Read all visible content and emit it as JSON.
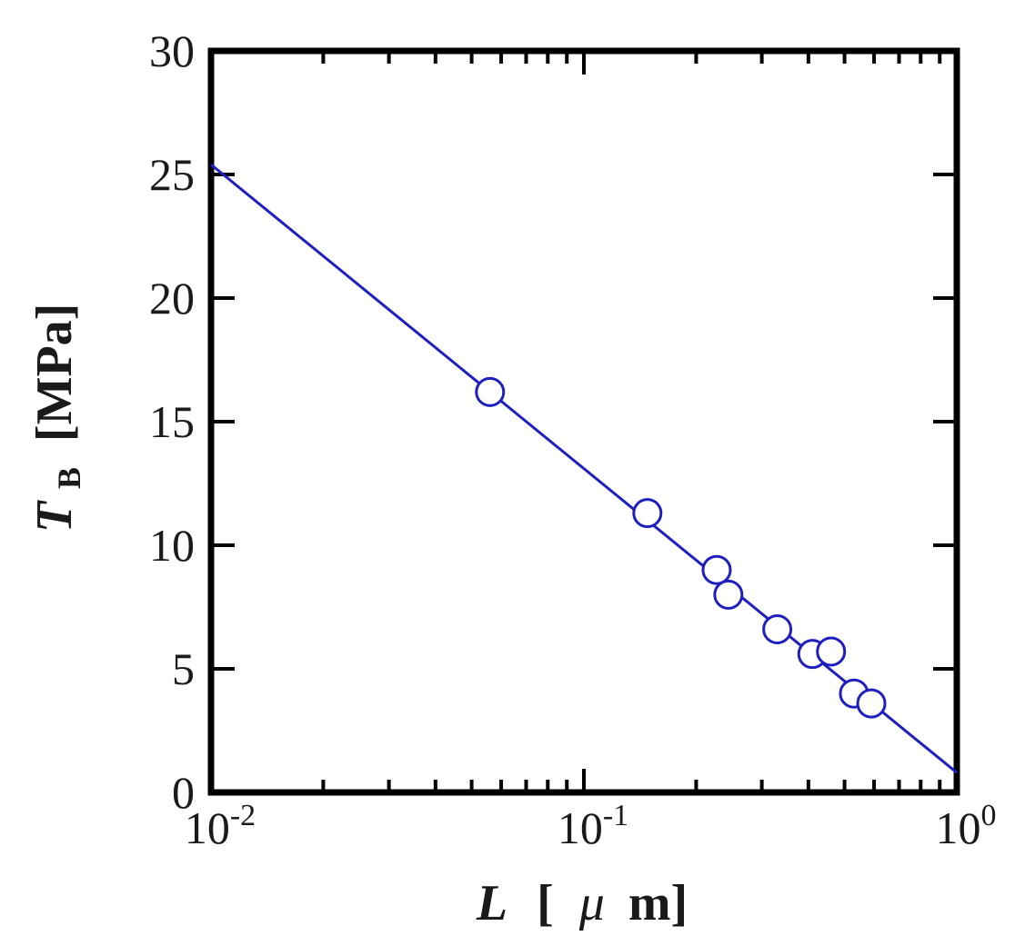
{
  "chart_data": {
    "type": "scatter",
    "x_scale": "log",
    "y_scale": "linear",
    "xlim": [
      0.01,
      1
    ],
    "ylim": [
      0,
      30
    ],
    "x_ticks": [
      {
        "value": 0.01,
        "base": "10",
        "exp": "-2"
      },
      {
        "value": 0.1,
        "base": "10",
        "exp": "-1"
      },
      {
        "value": 1,
        "base": "10",
        "exp": "0"
      }
    ],
    "y_ticks": [
      {
        "value": 0,
        "label": "0"
      },
      {
        "value": 5,
        "label": "5"
      },
      {
        "value": 10,
        "label": "10"
      },
      {
        "value": 15,
        "label": "15"
      },
      {
        "value": 20,
        "label": "20"
      },
      {
        "value": 25,
        "label": "25"
      },
      {
        "value": 30,
        "label": "30"
      }
    ],
    "xlabel": {
      "var": "L",
      "unit_open": "[",
      "unit_mu": "μ",
      "unit_rest": "m]"
    },
    "ylabel": {
      "var": "T",
      "sub": "B",
      "unit": "[MPa]"
    },
    "series": [
      {
        "marker": "open-circle",
        "color": "#1f1fbf",
        "points": [
          {
            "x": 0.056,
            "y": 16.2
          },
          {
            "x": 0.148,
            "y": 11.3
          },
          {
            "x": 0.227,
            "y": 9.0
          },
          {
            "x": 0.244,
            "y": 8.0
          },
          {
            "x": 0.33,
            "y": 6.6
          },
          {
            "x": 0.41,
            "y": 5.6
          },
          {
            "x": 0.46,
            "y": 5.7
          },
          {
            "x": 0.53,
            "y": 4.0
          },
          {
            "x": 0.59,
            "y": 3.6
          }
        ]
      },
      {
        "marker": "line",
        "color": "#1f1fbf",
        "points": [
          {
            "x": 0.01,
            "y": 25.4
          },
          {
            "x": 1,
            "y": 0.8
          }
        ]
      }
    ],
    "grid": false,
    "legend": "none"
  }
}
